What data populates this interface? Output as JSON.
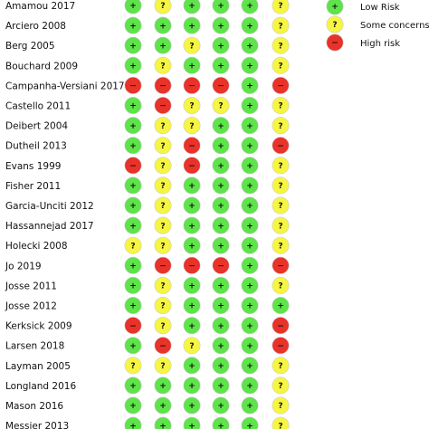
{
  "risk_levels": {
    "low": {
      "label": "Low Risk",
      "symbol": "+",
      "color": "#5ee34a"
    },
    "some": {
      "label": "Some concerns",
      "symbol": "?",
      "color": "#f5f542"
    },
    "high": {
      "label": "High risk",
      "symbol": "−",
      "color": "#e8322a"
    }
  },
  "legend_order": [
    "low",
    "some",
    "high"
  ],
  "studies": [
    {
      "name": "Amamou 2017",
      "judgements": [
        "low",
        "some",
        "low",
        "low",
        "low",
        "some"
      ]
    },
    {
      "name": "Arciero 2008",
      "judgements": [
        "low",
        "low",
        "low",
        "low",
        "low",
        "some"
      ]
    },
    {
      "name": "Berg 2005",
      "judgements": [
        "low",
        "low",
        "some",
        "low",
        "low",
        "some"
      ]
    },
    {
      "name": "Bouchard 2009",
      "judgements": [
        "low",
        "some",
        "low",
        "low",
        "low",
        "some"
      ]
    },
    {
      "name": "Campanha-Versiani 2017",
      "judgements": [
        "high",
        "high",
        "high",
        "high",
        "low",
        "high"
      ]
    },
    {
      "name": "Castello 2011",
      "judgements": [
        "low",
        "high",
        "some",
        "some",
        "low",
        "some"
      ]
    },
    {
      "name": "Deibert 2004",
      "judgements": [
        "low",
        "some",
        "some",
        "low",
        "low",
        "some"
      ]
    },
    {
      "name": "Dutheil 2013",
      "judgements": [
        "low",
        "some",
        "high",
        "low",
        "low",
        "high"
      ]
    },
    {
      "name": "Evans 1999",
      "judgements": [
        "high",
        "some",
        "high",
        "low",
        "low",
        "some"
      ]
    },
    {
      "name": "Fisher 2011",
      "judgements": [
        "low",
        "some",
        "low",
        "low",
        "low",
        "some"
      ]
    },
    {
      "name": "Garcia-Unciti 2012",
      "judgements": [
        "low",
        "some",
        "low",
        "low",
        "low",
        "some"
      ]
    },
    {
      "name": "Hassannejad 2017",
      "judgements": [
        "low",
        "some",
        "low",
        "low",
        "low",
        "some"
      ]
    },
    {
      "name": "Holecki 2008",
      "judgements": [
        "some",
        "some",
        "low",
        "low",
        "low",
        "some"
      ]
    },
    {
      "name": "Jo 2019",
      "judgements": [
        "low",
        "high",
        "high",
        "high",
        "low",
        "high"
      ]
    },
    {
      "name": "Josse 2011",
      "judgements": [
        "low",
        "some",
        "low",
        "low",
        "low",
        "some"
      ]
    },
    {
      "name": "Josse 2012",
      "judgements": [
        "low",
        "some",
        "low",
        "low",
        "low",
        "low"
      ]
    },
    {
      "name": "Kerksick 2009",
      "judgements": [
        "high",
        "some",
        "low",
        "low",
        "low",
        "high"
      ]
    },
    {
      "name": "Larsen 2018",
      "judgements": [
        "low",
        "high",
        "some",
        "low",
        "low",
        "high"
      ]
    },
    {
      "name": "Layman 2005",
      "judgements": [
        "some",
        "some",
        "low",
        "low",
        "low",
        "some"
      ]
    },
    {
      "name": "Longland 2016",
      "judgements": [
        "low",
        "low",
        "low",
        "low",
        "low",
        "some"
      ]
    },
    {
      "name": "Mason 2016",
      "judgements": [
        "low",
        "low",
        "low",
        "low",
        "low",
        "some"
      ]
    },
    {
      "name": "Messier 2013",
      "judgements": [
        "low",
        "low",
        "low",
        "low",
        "low",
        "some"
      ]
    }
  ]
}
